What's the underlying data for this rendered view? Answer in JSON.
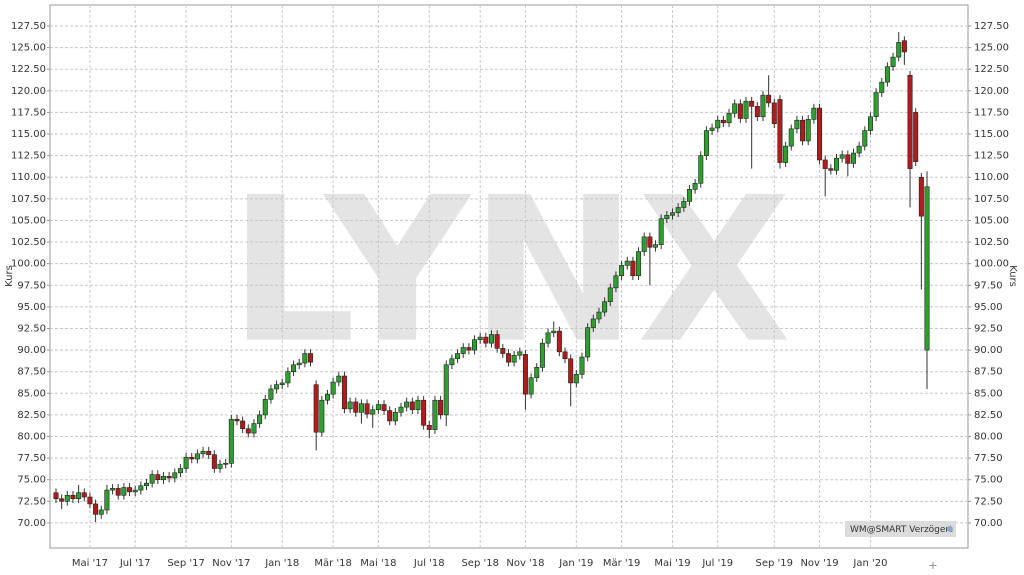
{
  "chart_data": {
    "type": "candlestick",
    "watermark": "LYNX",
    "y_label": "Kurs",
    "badge": "WM@SMART Verzögert",
    "up_color": "#2e9e2e",
    "down_color": "#b01c1c",
    "grid": true,
    "categories": [
      null,
      null,
      null,
      null,
      null,
      null,
      "Mai '17",
      null,
      null,
      null,
      null,
      null,
      null,
      null,
      "Jul '17",
      null,
      null,
      null,
      null,
      null,
      null,
      null,
      null,
      "Sep '17",
      null,
      null,
      null,
      null,
      null,
      null,
      null,
      "Nov '17",
      null,
      null,
      null,
      null,
      null,
      null,
      null,
      null,
      "Jan '18",
      null,
      null,
      null,
      null,
      null,
      null,
      null,
      null,
      "Mär '18",
      null,
      null,
      null,
      null,
      null,
      null,
      null,
      "Mai '18",
      null,
      null,
      null,
      null,
      null,
      null,
      null,
      null,
      "Jul '18",
      null,
      null,
      null,
      null,
      null,
      null,
      null,
      null,
      "Sep '18",
      null,
      null,
      null,
      null,
      null,
      null,
      null,
      "Nov '18",
      null,
      null,
      null,
      null,
      null,
      null,
      null,
      null,
      "Jan '19",
      null,
      null,
      null,
      null,
      null,
      null,
      null,
      "Mär '19",
      null,
      null,
      null,
      null,
      null,
      null,
      null,
      null,
      "Mai '19",
      null,
      null,
      null,
      null,
      null,
      null,
      null,
      "Jul '19",
      null,
      null,
      null,
      null,
      null,
      null,
      null,
      null,
      null,
      "Sep '19",
      null,
      null,
      null,
      null,
      null,
      null,
      null,
      "Nov '19",
      null,
      null,
      null,
      null,
      null,
      null,
      null,
      null,
      "Jan '20",
      null,
      null,
      null,
      null,
      null,
      null,
      null,
      null,
      null,
      null
    ],
    "open": [
      73.5,
      72.8,
      72.5,
      73.2,
      72.8,
      73.5,
      73.0,
      72.2,
      71.0,
      71.5,
      73.8,
      74.0,
      73.2,
      74.1,
      73.6,
      73.8,
      74.3,
      74.6,
      75.6,
      75.0,
      75.4,
      75.2,
      75.8,
      76.3,
      77.6,
      77.4,
      78.0,
      78.3,
      77.9,
      76.3,
      76.8,
      76.9,
      82.0,
      81.8,
      80.9,
      80.4,
      81.5,
      82.5,
      84.3,
      85.5,
      86.0,
      86.2,
      87.5,
      88.3,
      88.5,
      89.6,
      86.0,
      80.5,
      84.2,
      84.9,
      86.3,
      87.0,
      83.2,
      84.0,
      82.8,
      83.8,
      82.6,
      83.1,
      83.7,
      83.0,
      81.8,
      82.8,
      83.4,
      84.0,
      83.1,
      84.2,
      81.3,
      80.8,
      84.2,
      82.5,
      88.3,
      89.0,
      89.6,
      90.3,
      90.0,
      91.2,
      91.5,
      90.8,
      91.8,
      90.2,
      89.6,
      88.6,
      89.4,
      89.5,
      84.9,
      86.8,
      88.0,
      90.8,
      92.0,
      92.2,
      89.8,
      89.0,
      86.2,
      87.2,
      89.2,
      92.6,
      93.6,
      94.4,
      95.6,
      97.2,
      98.6,
      99.8,
      100.3,
      98.6,
      101.4,
      103.1,
      101.9,
      102.2,
      105.2,
      105.6,
      105.9,
      106.5,
      107.2,
      108.6,
      109.3,
      112.5,
      115.4,
      115.7,
      116.6,
      116.3,
      117.4,
      118.5,
      116.8,
      118.8,
      118.2,
      117.0,
      119.5,
      118.6,
      119.0,
      111.7,
      113.6,
      115.6,
      116.6,
      114.2,
      116.7,
      118.0,
      112.0,
      111.0,
      110.8,
      112.2,
      112.6,
      111.6,
      112.8,
      113.6,
      115.4,
      117.0,
      119.8,
      121.0,
      122.8,
      123.9,
      125.8,
      121.8,
      117.5,
      110.0,
      90.0
    ],
    "high": [
      74.0,
      73.3,
      73.7,
      73.7,
      74.4,
      74.0,
      73.5,
      72.7,
      72.0,
      74.4,
      74.5,
      74.5,
      74.6,
      74.6,
      74.3,
      74.8,
      75.1,
      76.1,
      76.1,
      75.9,
      75.9,
      76.3,
      76.8,
      78.1,
      78.1,
      78.5,
      78.8,
      78.8,
      78.4,
      77.3,
      77.4,
      82.5,
      82.5,
      82.3,
      81.4,
      82.0,
      83.0,
      84.8,
      86.0,
      86.5,
      86.7,
      88.0,
      88.8,
      89.0,
      90.1,
      90.1,
      86.5,
      84.7,
      85.4,
      86.8,
      87.5,
      87.5,
      84.5,
      84.5,
      84.3,
      84.3,
      83.6,
      84.2,
      84.2,
      83.5,
      83.3,
      83.9,
      84.5,
      84.5,
      84.7,
      84.7,
      81.8,
      84.7,
      84.7,
      88.8,
      89.5,
      90.1,
      90.8,
      90.8,
      91.7,
      92.0,
      92.0,
      92.3,
      92.3,
      90.7,
      90.1,
      89.9,
      90.3,
      90.0,
      87.3,
      88.5,
      91.3,
      92.5,
      93.3,
      92.7,
      90.3,
      89.5,
      87.7,
      89.7,
      93.1,
      94.1,
      94.9,
      96.1,
      97.7,
      99.1,
      100.3,
      100.8,
      100.8,
      101.9,
      103.6,
      103.6,
      102.7,
      105.7,
      106.1,
      106.4,
      107.0,
      107.7,
      109.1,
      109.8,
      113.0,
      115.9,
      116.2,
      117.1,
      117.1,
      117.9,
      119.0,
      119.0,
      119.3,
      119.3,
      118.7,
      120.0,
      121.8,
      119.1,
      119.5,
      114.1,
      116.1,
      117.1,
      117.1,
      117.2,
      118.5,
      118.5,
      112.5,
      111.5,
      112.7,
      113.1,
      113.1,
      113.3,
      114.1,
      115.9,
      117.5,
      120.3,
      121.5,
      123.3,
      124.4,
      126.8,
      126.3,
      122.3,
      118.0,
      110.5,
      110.7
    ],
    "low": [
      72.3,
      71.6,
      72.0,
      72.3,
      72.3,
      72.5,
      71.7,
      70.1,
      70.5,
      71.0,
      73.3,
      72.7,
      72.7,
      73.1,
      73.1,
      73.3,
      73.8,
      74.1,
      74.5,
      74.5,
      74.7,
      74.7,
      75.3,
      75.8,
      76.9,
      76.9,
      77.5,
      77.4,
      75.8,
      75.8,
      76.3,
      76.4,
      81.3,
      80.4,
      79.9,
      79.9,
      81.0,
      82.0,
      83.8,
      85.0,
      85.5,
      85.7,
      87.0,
      87.8,
      88.0,
      88.1,
      78.4,
      80.0,
      83.7,
      84.4,
      85.8,
      82.7,
      82.7,
      82.3,
      81.5,
      82.1,
      81.0,
      82.6,
      82.5,
      81.3,
      81.3,
      82.3,
      82.9,
      82.6,
      82.6,
      80.8,
      79.8,
      80.3,
      82.0,
      81.2,
      87.8,
      88.5,
      89.1,
      89.5,
      89.5,
      90.7,
      90.3,
      90.3,
      89.7,
      89.1,
      88.1,
      88.1,
      88.9,
      83.1,
      84.4,
      86.3,
      87.5,
      90.3,
      91.5,
      89.3,
      88.5,
      83.5,
      85.7,
      86.7,
      88.7,
      92.1,
      93.1,
      93.9,
      95.1,
      96.7,
      98.1,
      99.3,
      98.1,
      98.1,
      100.9,
      97.5,
      101.4,
      101.7,
      104.7,
      105.1,
      105.4,
      106.0,
      106.7,
      108.1,
      108.8,
      112.0,
      114.9,
      115.2,
      115.8,
      115.8,
      116.9,
      116.3,
      116.3,
      111.0,
      116.5,
      116.5,
      118.1,
      115.7,
      111.0,
      111.2,
      113.1,
      115.1,
      113.7,
      113.7,
      116.2,
      111.5,
      107.8,
      110.3,
      110.3,
      111.7,
      110.1,
      111.1,
      112.3,
      113.1,
      114.9,
      116.5,
      119.3,
      120.5,
      122.3,
      123.4,
      123.0,
      106.5,
      111.3,
      97.0,
      85.5
    ],
    "close": [
      72.8,
      72.5,
      73.2,
      72.8,
      73.5,
      73.0,
      72.2,
      71.0,
      71.5,
      73.8,
      74.0,
      73.2,
      74.1,
      73.6,
      73.8,
      74.3,
      74.6,
      75.6,
      75.0,
      75.4,
      75.2,
      75.8,
      76.3,
      77.6,
      77.4,
      78.0,
      78.3,
      77.9,
      76.3,
      76.8,
      76.9,
      82.0,
      81.8,
      80.9,
      80.4,
      81.5,
      82.5,
      84.3,
      85.5,
      86.0,
      86.2,
      87.5,
      88.3,
      88.5,
      89.6,
      88.6,
      80.5,
      84.2,
      84.9,
      86.3,
      87.0,
      83.2,
      84.0,
      82.8,
      83.8,
      82.6,
      83.1,
      83.7,
      83.0,
      81.8,
      82.8,
      83.4,
      84.0,
      83.1,
      84.2,
      81.3,
      80.8,
      84.2,
      82.5,
      88.3,
      89.0,
      89.6,
      90.3,
      90.0,
      91.2,
      91.5,
      90.8,
      91.8,
      90.2,
      89.6,
      88.6,
      89.4,
      89.8,
      84.9,
      86.8,
      88.0,
      90.8,
      92.0,
      92.2,
      89.8,
      89.0,
      86.2,
      87.2,
      89.2,
      92.6,
      93.6,
      94.4,
      95.6,
      97.2,
      98.6,
      99.8,
      100.3,
      98.6,
      101.4,
      103.1,
      101.9,
      102.2,
      105.2,
      105.6,
      105.9,
      106.5,
      107.2,
      108.6,
      109.3,
      112.5,
      115.4,
      115.7,
      116.6,
      116.3,
      117.4,
      118.5,
      116.8,
      118.8,
      118.2,
      117.0,
      119.5,
      118.6,
      116.2,
      111.7,
      113.6,
      115.6,
      116.6,
      114.2,
      116.7,
      118.0,
      112.0,
      111.0,
      110.8,
      112.2,
      112.6,
      111.6,
      112.8,
      113.6,
      115.4,
      117.0,
      119.8,
      121.0,
      122.8,
      123.9,
      125.6,
      124.5,
      111.0,
      111.8,
      105.5,
      108.9
    ],
    "ylim": [
      67.1,
      129.93
    ],
    "yticks": [
      {
        "value": 70,
        "label": "70.00"
      },
      {
        "value": 72.5,
        "label": "72.50"
      },
      {
        "value": 75,
        "label": "75.00"
      },
      {
        "value": 77.5,
        "label": "77.50"
      },
      {
        "value": 80,
        "label": "80.00"
      },
      {
        "value": 82.5,
        "label": "82.50"
      },
      {
        "value": 85,
        "label": "85.00"
      },
      {
        "value": 87.5,
        "label": "87.50"
      },
      {
        "value": 90,
        "label": "90.00"
      },
      {
        "value": 92.5,
        "label": "92.50"
      },
      {
        "value": 95,
        "label": "95.00"
      },
      {
        "value": 97.5,
        "label": "97.50"
      },
      {
        "value": 100,
        "label": "100.00"
      },
      {
        "value": 102.5,
        "label": "102.50"
      },
      {
        "value": 105,
        "label": "105.00"
      },
      {
        "value": 107.5,
        "label": "107.50"
      },
      {
        "value": 110,
        "label": "110.00"
      },
      {
        "value": 112.5,
        "label": "112.50"
      },
      {
        "value": 115,
        "label": "115.00"
      },
      {
        "value": 117.5,
        "label": "117.50"
      },
      {
        "value": 120,
        "label": "120.00"
      },
      {
        "value": 122.5,
        "label": "122.50"
      },
      {
        "value": 125,
        "label": "125.00"
      },
      {
        "value": 127.5,
        "label": "127.50"
      }
    ]
  }
}
